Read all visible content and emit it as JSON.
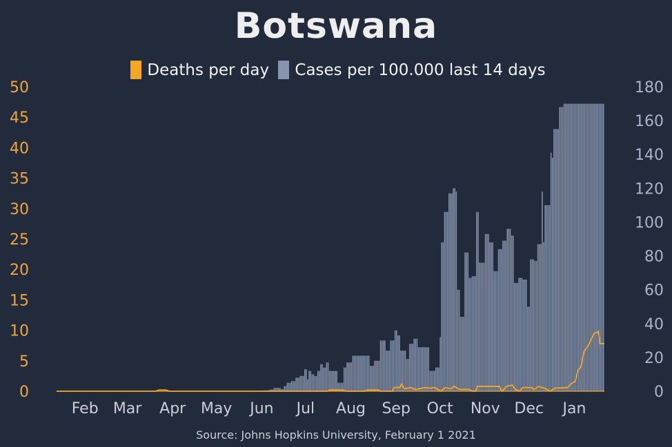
{
  "title": "Botswana",
  "source": "Source: Johns Hopkins University, February 1 2021",
  "colors": {
    "background": "#222b3c",
    "deaths": "#f5a623",
    "cases": "#8794ad",
    "left_axis": "#f0a540",
    "right_axis": "#a9b4c8",
    "x_axis": "#c9ced8"
  },
  "chart_data": {
    "type": "bar",
    "title": "Botswana",
    "xlabel": "",
    "ylabel": "",
    "x_ticks": [
      "Feb",
      "Mar",
      "Apr",
      "May",
      "Jun",
      "Jul",
      "Aug",
      "Sep",
      "Oct",
      "Nov",
      "Dec",
      "Jan"
    ],
    "x_range": [
      "2020-01-22",
      "2021-01-31"
    ],
    "y_left": {
      "ticks": [
        0,
        5,
        10,
        15,
        20,
        25,
        30,
        35,
        40,
        45,
        50
      ],
      "range": [
        0,
        50
      ]
    },
    "y_right": {
      "ticks": [
        0,
        20,
        40,
        60,
        80,
        100,
        120,
        140,
        160,
        180
      ],
      "range": [
        0,
        180
      ]
    },
    "legend": {
      "position": "top-center"
    },
    "series": [
      {
        "name": "Deaths per day",
        "type": "line",
        "axis": "left",
        "points": [
          [
            "2020-01-22",
            0
          ],
          [
            "2020-03-30",
            0
          ],
          [
            "2020-04-01",
            0.2
          ],
          [
            "2020-04-06",
            0.2
          ],
          [
            "2020-04-08",
            0
          ],
          [
            "2020-07-25",
            0
          ],
          [
            "2020-07-27",
            0.2
          ],
          [
            "2020-08-05",
            0.2
          ],
          [
            "2020-08-07",
            0
          ],
          [
            "2020-08-20",
            0
          ],
          [
            "2020-08-22",
            0.2
          ],
          [
            "2020-08-29",
            0.2
          ],
          [
            "2020-08-31",
            0
          ],
          [
            "2020-09-08",
            0
          ],
          [
            "2020-09-09",
            0.6
          ],
          [
            "2020-09-13",
            0.6
          ],
          [
            "2020-09-14",
            1.2
          ],
          [
            "2020-09-16",
            0.4
          ],
          [
            "2020-09-20",
            0.6
          ],
          [
            "2020-09-24",
            0.3
          ],
          [
            "2020-09-30",
            0.6
          ],
          [
            "2020-10-04",
            0.5
          ],
          [
            "2020-10-07",
            0.6
          ],
          [
            "2020-10-11",
            0
          ],
          [
            "2020-10-14",
            0.6
          ],
          [
            "2020-10-18",
            0.4
          ],
          [
            "2020-10-20",
            0.8
          ],
          [
            "2020-10-24",
            0.3
          ],
          [
            "2020-10-30",
            0.3
          ],
          [
            "2020-11-02",
            0
          ],
          [
            "2020-11-04",
            0
          ],
          [
            "2020-11-05",
            0.8
          ],
          [
            "2020-11-20",
            0.8
          ],
          [
            "2020-11-22",
            0
          ],
          [
            "2020-11-25",
            0.8
          ],
          [
            "2020-11-29",
            1.0
          ],
          [
            "2020-12-01",
            0.3
          ],
          [
            "2020-12-04",
            0
          ],
          [
            "2020-12-06",
            0.6
          ],
          [
            "2020-12-12",
            0.6
          ],
          [
            "2020-12-14",
            0.3
          ],
          [
            "2020-12-17",
            0.8
          ],
          [
            "2020-12-21",
            0.5
          ],
          [
            "2020-12-25",
            0
          ],
          [
            "2020-12-28",
            0.5
          ],
          [
            "2021-01-06",
            0.6
          ],
          [
            "2021-01-08",
            1.2
          ],
          [
            "2021-01-11",
            1.6
          ],
          [
            "2021-01-13",
            3.5
          ],
          [
            "2021-01-15",
            4.0
          ],
          [
            "2021-01-17",
            6.5
          ],
          [
            "2021-01-20",
            7.5
          ],
          [
            "2021-01-22",
            8.5
          ],
          [
            "2021-01-24",
            9.5
          ],
          [
            "2021-01-27",
            9.8
          ],
          [
            "2021-01-28",
            7.8
          ],
          [
            "2021-01-31",
            7.8
          ]
        ]
      },
      {
        "name": "Cases per 100.000 last 14 days",
        "type": "bar",
        "axis": "right",
        "points": [
          [
            "2020-01-22",
            0
          ],
          [
            "2020-03-31",
            0.1
          ],
          [
            "2020-05-31",
            0.1
          ],
          [
            "2020-06-05",
            0.2
          ],
          [
            "2020-06-12",
            0.5
          ],
          [
            "2020-06-16",
            1
          ],
          [
            "2020-06-19",
            2
          ],
          [
            "2020-06-24",
            1.2
          ],
          [
            "2020-06-26",
            3
          ],
          [
            "2020-06-28",
            5
          ],
          [
            "2020-07-01",
            6
          ],
          [
            "2020-07-04",
            8
          ],
          [
            "2020-07-07",
            9
          ],
          [
            "2020-07-10",
            13
          ],
          [
            "2020-07-12",
            7
          ],
          [
            "2020-07-13",
            12
          ],
          [
            "2020-07-15",
            10
          ],
          [
            "2020-07-17",
            9
          ],
          [
            "2020-07-19",
            12
          ],
          [
            "2020-07-21",
            16
          ],
          [
            "2020-07-23",
            14
          ],
          [
            "2020-07-25",
            17
          ],
          [
            "2020-07-27",
            12
          ],
          [
            "2020-07-31",
            12
          ],
          [
            "2020-08-02",
            5
          ],
          [
            "2020-08-06",
            14
          ],
          [
            "2020-08-08",
            17
          ],
          [
            "2020-08-12",
            21
          ],
          [
            "2020-08-24",
            15
          ],
          [
            "2020-08-27",
            18
          ],
          [
            "2020-08-31",
            30
          ],
          [
            "2020-09-04",
            24
          ],
          [
            "2020-09-07",
            30
          ],
          [
            "2020-09-10",
            36
          ],
          [
            "2020-09-12",
            33
          ],
          [
            "2020-09-14",
            24
          ],
          [
            "2020-09-18",
            19
          ],
          [
            "2020-09-20",
            28
          ],
          [
            "2020-09-23",
            31
          ],
          [
            "2020-09-26",
            26
          ],
          [
            "2020-10-02",
            26
          ],
          [
            "2020-10-04",
            12
          ],
          [
            "2020-10-08",
            14
          ],
          [
            "2020-10-11",
            32
          ],
          [
            "2020-10-12",
            88
          ],
          [
            "2020-10-14",
            106
          ],
          [
            "2020-10-17",
            117
          ],
          [
            "2020-10-20",
            120
          ],
          [
            "2020-10-22",
            118
          ],
          [
            "2020-10-23",
            60
          ],
          [
            "2020-10-25",
            44
          ],
          [
            "2020-10-28",
            82
          ],
          [
            "2020-10-31",
            67
          ],
          [
            "2020-11-02",
            68
          ],
          [
            "2020-11-05",
            106
          ],
          [
            "2020-11-07",
            76
          ],
          [
            "2020-11-11",
            93
          ],
          [
            "2020-11-14",
            88
          ],
          [
            "2020-11-17",
            71
          ],
          [
            "2020-11-20",
            84
          ],
          [
            "2020-11-23",
            89
          ],
          [
            "2020-11-26",
            96
          ],
          [
            "2020-11-29",
            92
          ],
          [
            "2020-12-01",
            64
          ],
          [
            "2020-12-04",
            67
          ],
          [
            "2020-12-07",
            66
          ],
          [
            "2020-12-10",
            50
          ],
          [
            "2020-12-12",
            78
          ],
          [
            "2020-12-15",
            77
          ],
          [
            "2020-12-17",
            87
          ],
          [
            "2020-12-20",
            118
          ],
          [
            "2020-12-21",
            88
          ],
          [
            "2020-12-22",
            110
          ],
          [
            "2020-12-26",
            141
          ],
          [
            "2020-12-27",
            138
          ],
          [
            "2020-12-28",
            155
          ],
          [
            "2021-01-01",
            168
          ],
          [
            "2021-01-04",
            170
          ],
          [
            "2021-01-06",
            170
          ]
        ]
      }
    ]
  }
}
